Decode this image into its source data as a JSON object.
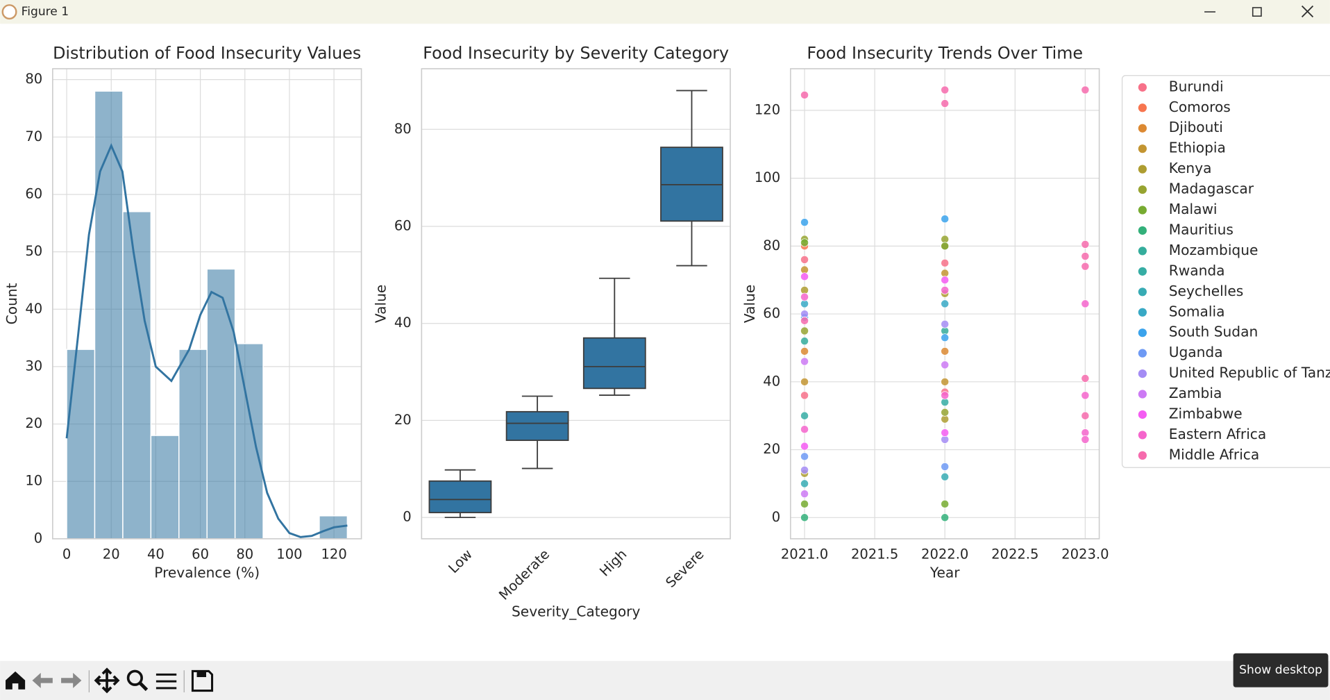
{
  "window": {
    "title": "Figure 1",
    "tooltip": "Show desktop"
  },
  "chart_data": [
    {
      "type": "histogram",
      "title": "Distribution of Food Insecurity Values",
      "x_label": "Prevalence (%)",
      "y_label": "Count",
      "bins": [
        0,
        12.6,
        25.2,
        37.8,
        50.4,
        63,
        75.6,
        88.2,
        100.8,
        113.4,
        126
      ],
      "values": [
        33,
        78,
        57,
        18,
        33,
        47,
        34,
        0,
        0,
        4
      ],
      "kde": {
        "x": [
          0,
          5,
          10,
          15,
          20,
          25,
          30,
          35,
          40,
          47,
          55,
          60,
          65,
          70,
          75,
          80,
          85,
          90,
          95,
          100,
          105,
          110,
          115,
          120,
          126
        ],
        "y": [
          17.5,
          35,
          53,
          64,
          68.5,
          64,
          50,
          38,
          30,
          27.5,
          33,
          39,
          43,
          42,
          36,
          26,
          16,
          8,
          3.5,
          1,
          0.3,
          0.5,
          1.3,
          2,
          2.3
        ]
      },
      "color": "#3274a1",
      "xlim": [
        -6.3,
        132.3
      ],
      "xticks": [
        0,
        20,
        40,
        60,
        80,
        100,
        120
      ],
      "ylim": [
        0,
        81.9
      ],
      "yticks": [
        0,
        10,
        20,
        30,
        40,
        50,
        60,
        70,
        80
      ],
      "grid": true
    },
    {
      "type": "box",
      "title": "Food Insecurity by Severity Category",
      "x_label": "Severity_Category",
      "y_label": "Value",
      "categories": [
        "Low",
        "Moderate",
        "High",
        "Severe"
      ],
      "boxes": [
        {
          "whislo": 0,
          "q1": 1.0,
          "med": 3.7,
          "q3": 7.5,
          "whishi": 9.8
        },
        {
          "whislo": 10.1,
          "q1": 15.9,
          "med": 19.4,
          "q3": 21.8,
          "whishi": 25.0
        },
        {
          "whislo": 25.2,
          "q1": 26.6,
          "med": 31.1,
          "q3": 37.0,
          "whishi": 49.3
        },
        {
          "whislo": 51.9,
          "q1": 61.1,
          "med": 68.6,
          "q3": 76.3,
          "whishi": 88.0
        }
      ],
      "color": "#3274a1",
      "ylim": [
        -4.4,
        92.5
      ],
      "yticks": [
        0,
        20,
        40,
        60,
        80
      ],
      "grid": true
    },
    {
      "type": "scatter",
      "title": "Food Insecurity Trends Over Time",
      "x_label": "Year",
      "y_label": "Value",
      "xlim": [
        2020.9,
        2023.1
      ],
      "xticks": [
        {
          "value": 2021,
          "label": "2021.0"
        },
        {
          "value": 2021.5,
          "label": "2021.5"
        },
        {
          "value": 2022,
          "label": "2022.0"
        },
        {
          "value": 2022.5,
          "label": "2022.5"
        },
        {
          "value": 2023,
          "label": "2023.0"
        }
      ],
      "ylim": [
        -6.25,
        132.25
      ],
      "yticks": [
        0,
        20,
        40,
        60,
        80,
        100,
        120
      ],
      "grid": true,
      "legend": "outside-right",
      "series": [
        {
          "name": "Burundi",
          "color": "#f77189",
          "x": [
            2021,
            2021,
            2022,
            2022
          ],
          "values": [
            76,
            36,
            75,
            37
          ]
        },
        {
          "name": "Comoros",
          "color": "#f7754f",
          "x": [
            2021,
            2022
          ],
          "values": [
            80,
            80
          ]
        },
        {
          "name": "Djibouti",
          "color": "#dc8932",
          "x": [
            2021,
            2022
          ],
          "values": [
            49,
            49
          ]
        },
        {
          "name": "Ethiopia",
          "color": "#c39532",
          "x": [
            2021,
            2021,
            2022,
            2022
          ],
          "values": [
            73,
            40,
            72,
            40
          ]
        },
        {
          "name": "Kenya",
          "color": "#ae9d31",
          "x": [
            2021,
            2021,
            2022,
            2022
          ],
          "values": [
            67,
            13,
            66,
            29
          ]
        },
        {
          "name": "Madagascar",
          "color": "#97a431",
          "x": [
            2021,
            2021,
            2022,
            2022
          ],
          "values": [
            82,
            55,
            82,
            31
          ]
        },
        {
          "name": "Malawi",
          "color": "#77ab31",
          "x": [
            2021,
            2021,
            2022,
            2022
          ],
          "values": [
            81,
            4,
            80,
            4
          ]
        },
        {
          "name": "Mauritius",
          "color": "#33b07a",
          "x": [
            2021,
            2022
          ],
          "values": [
            0,
            0
          ]
        },
        {
          "name": "Mozambique",
          "color": "#35ad9c",
          "x": [
            2021,
            2022
          ],
          "values": [
            52,
            55
          ]
        },
        {
          "name": "Rwanda",
          "color": "#36ada4",
          "x": [
            2021,
            2022
          ],
          "values": [
            30,
            34
          ]
        },
        {
          "name": "Seychelles",
          "color": "#37abb4",
          "x": [
            2021,
            2022
          ],
          "values": [
            10,
            12
          ]
        },
        {
          "name": "Somalia",
          "color": "#38a9c5",
          "x": [
            2021,
            2022
          ],
          "values": [
            63,
            63
          ]
        },
        {
          "name": "South Sudan",
          "color": "#3ba3ec",
          "x": [
            2021,
            2021,
            2022,
            2022
          ],
          "values": [
            87,
            59,
            88,
            53
          ]
        },
        {
          "name": "Uganda",
          "color": "#6e9af4",
          "x": [
            2021,
            2022
          ],
          "values": [
            18,
            15
          ]
        },
        {
          "name": "United Republic of Tanzania",
          "color": "#a48cf4",
          "x": [
            2021,
            2021,
            2022,
            2022
          ],
          "values": [
            60,
            14,
            57,
            23
          ]
        },
        {
          "name": "Zambia",
          "color": "#cc7af4",
          "x": [
            2021,
            2021,
            2022
          ],
          "values": [
            46,
            7,
            45
          ]
        },
        {
          "name": "Zimbabwe",
          "color": "#f45cf2",
          "x": [
            2021,
            2021,
            2022,
            2022
          ],
          "values": [
            71,
            21,
            70,
            25
          ]
        },
        {
          "name": "Eastern Africa",
          "color": "#f565cc",
          "x": [
            2021,
            2021,
            2022,
            2022,
            2023,
            2023,
            2023,
            2023
          ],
          "values": [
            65,
            26,
            67,
            36,
            63,
            36,
            25,
            23
          ]
        },
        {
          "name": "Middle Africa",
          "color": "#f66bad",
          "x": [
            2021,
            2021,
            2022,
            2022,
            2023,
            2023,
            2023,
            2023,
            2023,
            2023
          ],
          "values": [
            124.5,
            58,
            126,
            122,
            126,
            80.5,
            77,
            74,
            41,
            30
          ]
        }
      ]
    }
  ]
}
